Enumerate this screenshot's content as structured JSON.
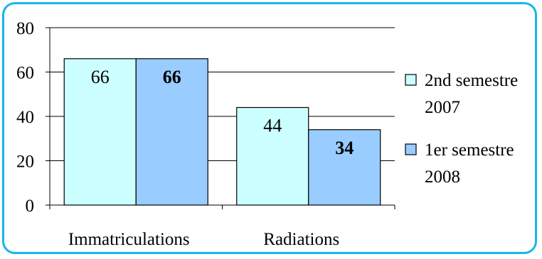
{
  "chart_data": {
    "type": "bar",
    "categories": [
      "Immatriculations",
      "Radiations"
    ],
    "series": [
      {
        "name": "2nd semestre 2007",
        "name_lines": [
          "2nd semestre",
          "2007"
        ],
        "values": [
          66,
          44
        ],
        "color": "#ccffff",
        "label_bold": false
      },
      {
        "name": "1er semestre 2008",
        "name_lines": [
          "1er semestre",
          "2008"
        ],
        "values": [
          66,
          34
        ],
        "color": "#99ccff",
        "label_bold": true
      }
    ],
    "data_labels": [
      [
        "66",
        "44"
      ],
      [
        "66",
        "34"
      ]
    ],
    "yticks": [
      "0",
      "20",
      "40",
      "60",
      "80"
    ],
    "ylim": [
      0,
      80
    ],
    "grid": true,
    "legend_position": "right",
    "title": "",
    "xlabel": "",
    "ylabel": ""
  },
  "colors": {
    "border": "#17b6ea",
    "grid": "#000000"
  }
}
